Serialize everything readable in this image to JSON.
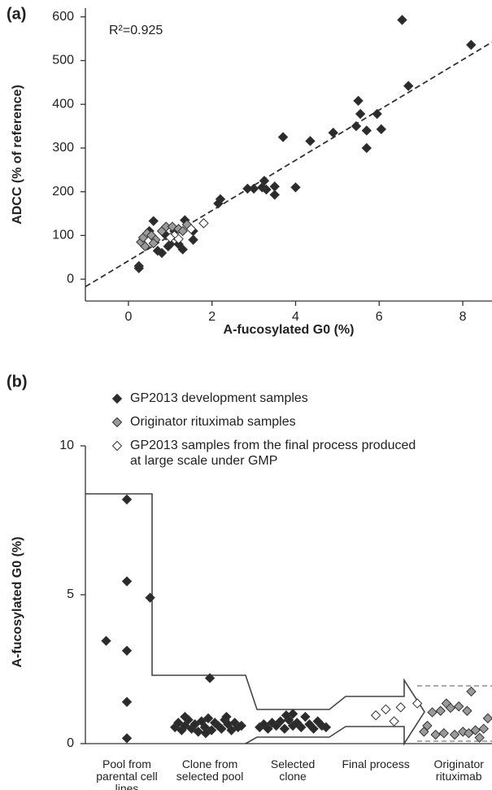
{
  "chart_data": [
    {
      "type": "scatter",
      "panel_label": "(a)",
      "x_label": "A-fucosylated G0 (%)",
      "y_label": "ADCC (% of reference)",
      "annotation": "R²=0.925",
      "xlim": [
        -1.03,
        8.7
      ],
      "xticks": [
        0,
        2,
        4,
        6,
        8
      ],
      "ylim": [
        -50,
        620
      ],
      "yticks": [
        0,
        100,
        200,
        300,
        400,
        500,
        600
      ],
      "fit": {
        "slope": 57.5,
        "intercept": 42
      },
      "series": [
        {
          "color": "#2b2b2b",
          "x": [
            6.55,
            8.2,
            6.7,
            5.5,
            5.55,
            5.95,
            5.45,
            5.7,
            6.05,
            5.7,
            4.9,
            4.35,
            3.7,
            3.25,
            3.5,
            3.5,
            3.2,
            3.0,
            2.85,
            3.3,
            4.0,
            2.2,
            2.15,
            1.55,
            1.55,
            0.6,
            0.25,
            0.25,
            0.7,
            0.8,
            1.0,
            1.2,
            1.3,
            0.9,
            1.1,
            1.35,
            0.5,
            0.95
          ],
          "values": [
            593,
            536,
            442,
            408,
            378,
            378,
            350,
            340,
            343,
            300,
            335,
            316,
            325,
            225,
            212,
            193,
            210,
            207,
            207,
            205,
            210,
            183,
            173,
            110,
            90,
            133,
            30,
            25,
            65,
            60,
            80,
            80,
            68,
            100,
            110,
            135,
            110,
            75
          ]
        },
        {
          "color": "#9a9a9a",
          "x": [
            0.3,
            0.35,
            0.45,
            0.55,
            0.65,
            0.8,
            0.9,
            1.05,
            1.2,
            1.4,
            0.4,
            0.6,
            1.3
          ],
          "values": [
            85,
            95,
            105,
            100,
            90,
            110,
            120,
            120,
            115,
            125,
            75,
            82,
            110
          ]
        },
        {
          "color": "#ffffff",
          "x": [
            1.8,
            1.5,
            1.1,
            1.2,
            1.0
          ],
          "values": [
            128,
            115,
            100,
            92,
            95
          ]
        }
      ]
    },
    {
      "type": "strip",
      "panel_label": "(b)",
      "y_label": "A-fucosylated G0 (%)",
      "categories": [
        "Pool from parental cell lines",
        "Clone from selected pool",
        "Selected clone",
        "Final process",
        "Originator rituximab"
      ],
      "xlim": [
        -0.5,
        4.4
      ],
      "ylim": [
        0,
        10
      ],
      "yticks": [
        0,
        5,
        10
      ],
      "series": [
        {
          "name": "GP2013 development samples",
          "color": "#2b2b2b",
          "x": [
            -0.25,
            0,
            0,
            0,
            0.28,
            0,
            0,
            1.0,
            0.58,
            0.62,
            0.66,
            0.7,
            0.74,
            0.78,
            0.82,
            0.86,
            0.9,
            0.94,
            0.98,
            1.02,
            1.06,
            1.1,
            1.14,
            1.18,
            1.22,
            1.26,
            1.3,
            1.34,
            1.38,
            0.7,
            0.95,
            1.2,
            2.0,
            1.6,
            1.65,
            1.7,
            1.75,
            1.8,
            1.85,
            1.9,
            1.95,
            2.0,
            2.05,
            2.1,
            2.15,
            2.2,
            2.25,
            2.3,
            2.35,
            2.4,
            1.92
          ],
          "values": [
            3.45,
            8.2,
            5.45,
            3.12,
            4.9,
            1.4,
            0.18,
            2.2,
            0.55,
            0.7,
            0.45,
            0.6,
            0.8,
            0.5,
            0.65,
            0.4,
            0.75,
            0.55,
            0.85,
            0.45,
            0.7,
            0.6,
            0.5,
            0.8,
            0.65,
            0.45,
            0.7,
            0.55,
            0.6,
            0.9,
            0.35,
            0.9,
            1.0,
            0.55,
            0.65,
            0.5,
            0.7,
            0.6,
            0.75,
            0.5,
            0.8,
            0.6,
            0.7,
            0.55,
            0.9,
            0.65,
            0.5,
            0.75,
            0.6,
            0.55,
            0.95
          ]
        },
        {
          "name": "Originator rituximab samples",
          "color": "#9a9a9a",
          "x": [
            3.58,
            3.62,
            3.68,
            3.72,
            3.78,
            3.82,
            3.85,
            3.9,
            3.95,
            4.0,
            4.05,
            4.1,
            4.12,
            4.15,
            4.2,
            4.25,
            4.3,
            4.35
          ],
          "values": [
            0.4,
            0.6,
            1.05,
            0.3,
            1.1,
            0.35,
            1.35,
            1.2,
            0.3,
            1.25,
            0.4,
            1.1,
            0.35,
            1.75,
            0.45,
            0.2,
            0.5,
            0.85
          ]
        },
        {
          "name": "GP2013 samples from the final process produced at large scale under GMP",
          "color": "#ffffff",
          "x": [
            3.0,
            3.12,
            3.22,
            3.3,
            3.5
          ],
          "values": [
            0.95,
            1.15,
            0.75,
            1.22,
            1.35
          ]
        }
      ]
    }
  ]
}
